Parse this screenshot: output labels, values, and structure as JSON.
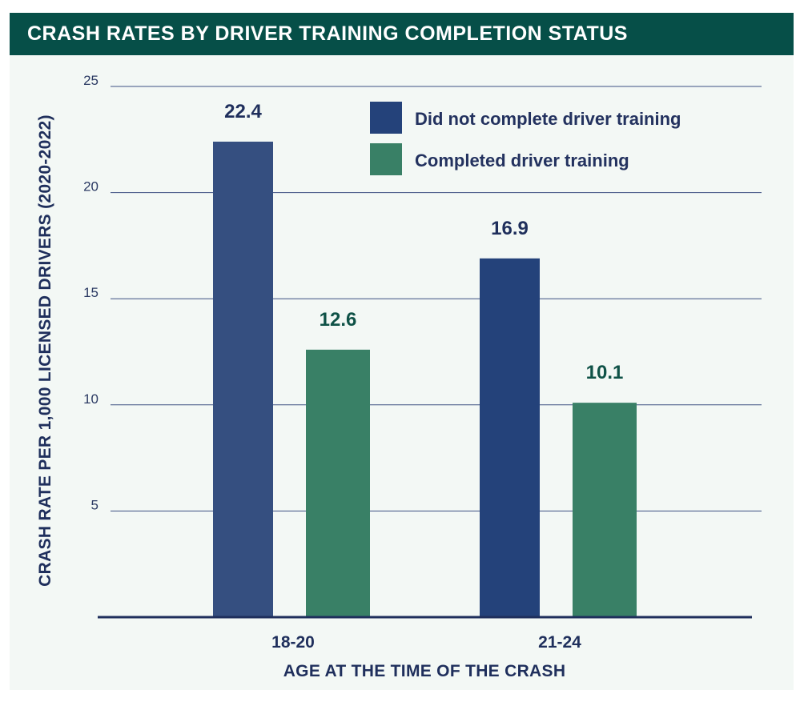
{
  "chart_data": {
    "type": "bar",
    "title": "CRASH RATES BY DRIVER TRAINING COMPLETION STATUS",
    "xlabel": "AGE AT THE TIME OF THE CRASH",
    "ylabel": "CRASH RATE PER 1,000 LICENSED DRIVERS (2020-2022)",
    "ylim": [
      0,
      25
    ],
    "yticks": [
      5,
      10,
      15,
      20,
      25
    ],
    "categories": [
      "18-20",
      "21-24"
    ],
    "series": [
      {
        "name": "Did not complete driver training",
        "values": [
          22.4,
          16.9
        ],
        "labels": [
          "22.4",
          "16.9"
        ],
        "color": "#24427a",
        "label_color": "#1f2f5c"
      },
      {
        "name": "Completed driver training",
        "values": [
          12.6,
          10.1
        ],
        "labels": [
          "12.6",
          "10.1"
        ],
        "color": "#398066",
        "label_color": "#0f5247"
      }
    ],
    "legend_position": "top-right",
    "grid": true
  },
  "colors": {
    "title_bg": "#064f48",
    "panel_bg": "#f3f8f5",
    "gridline": "#3d4f82",
    "axis": "#1f2f5c"
  }
}
